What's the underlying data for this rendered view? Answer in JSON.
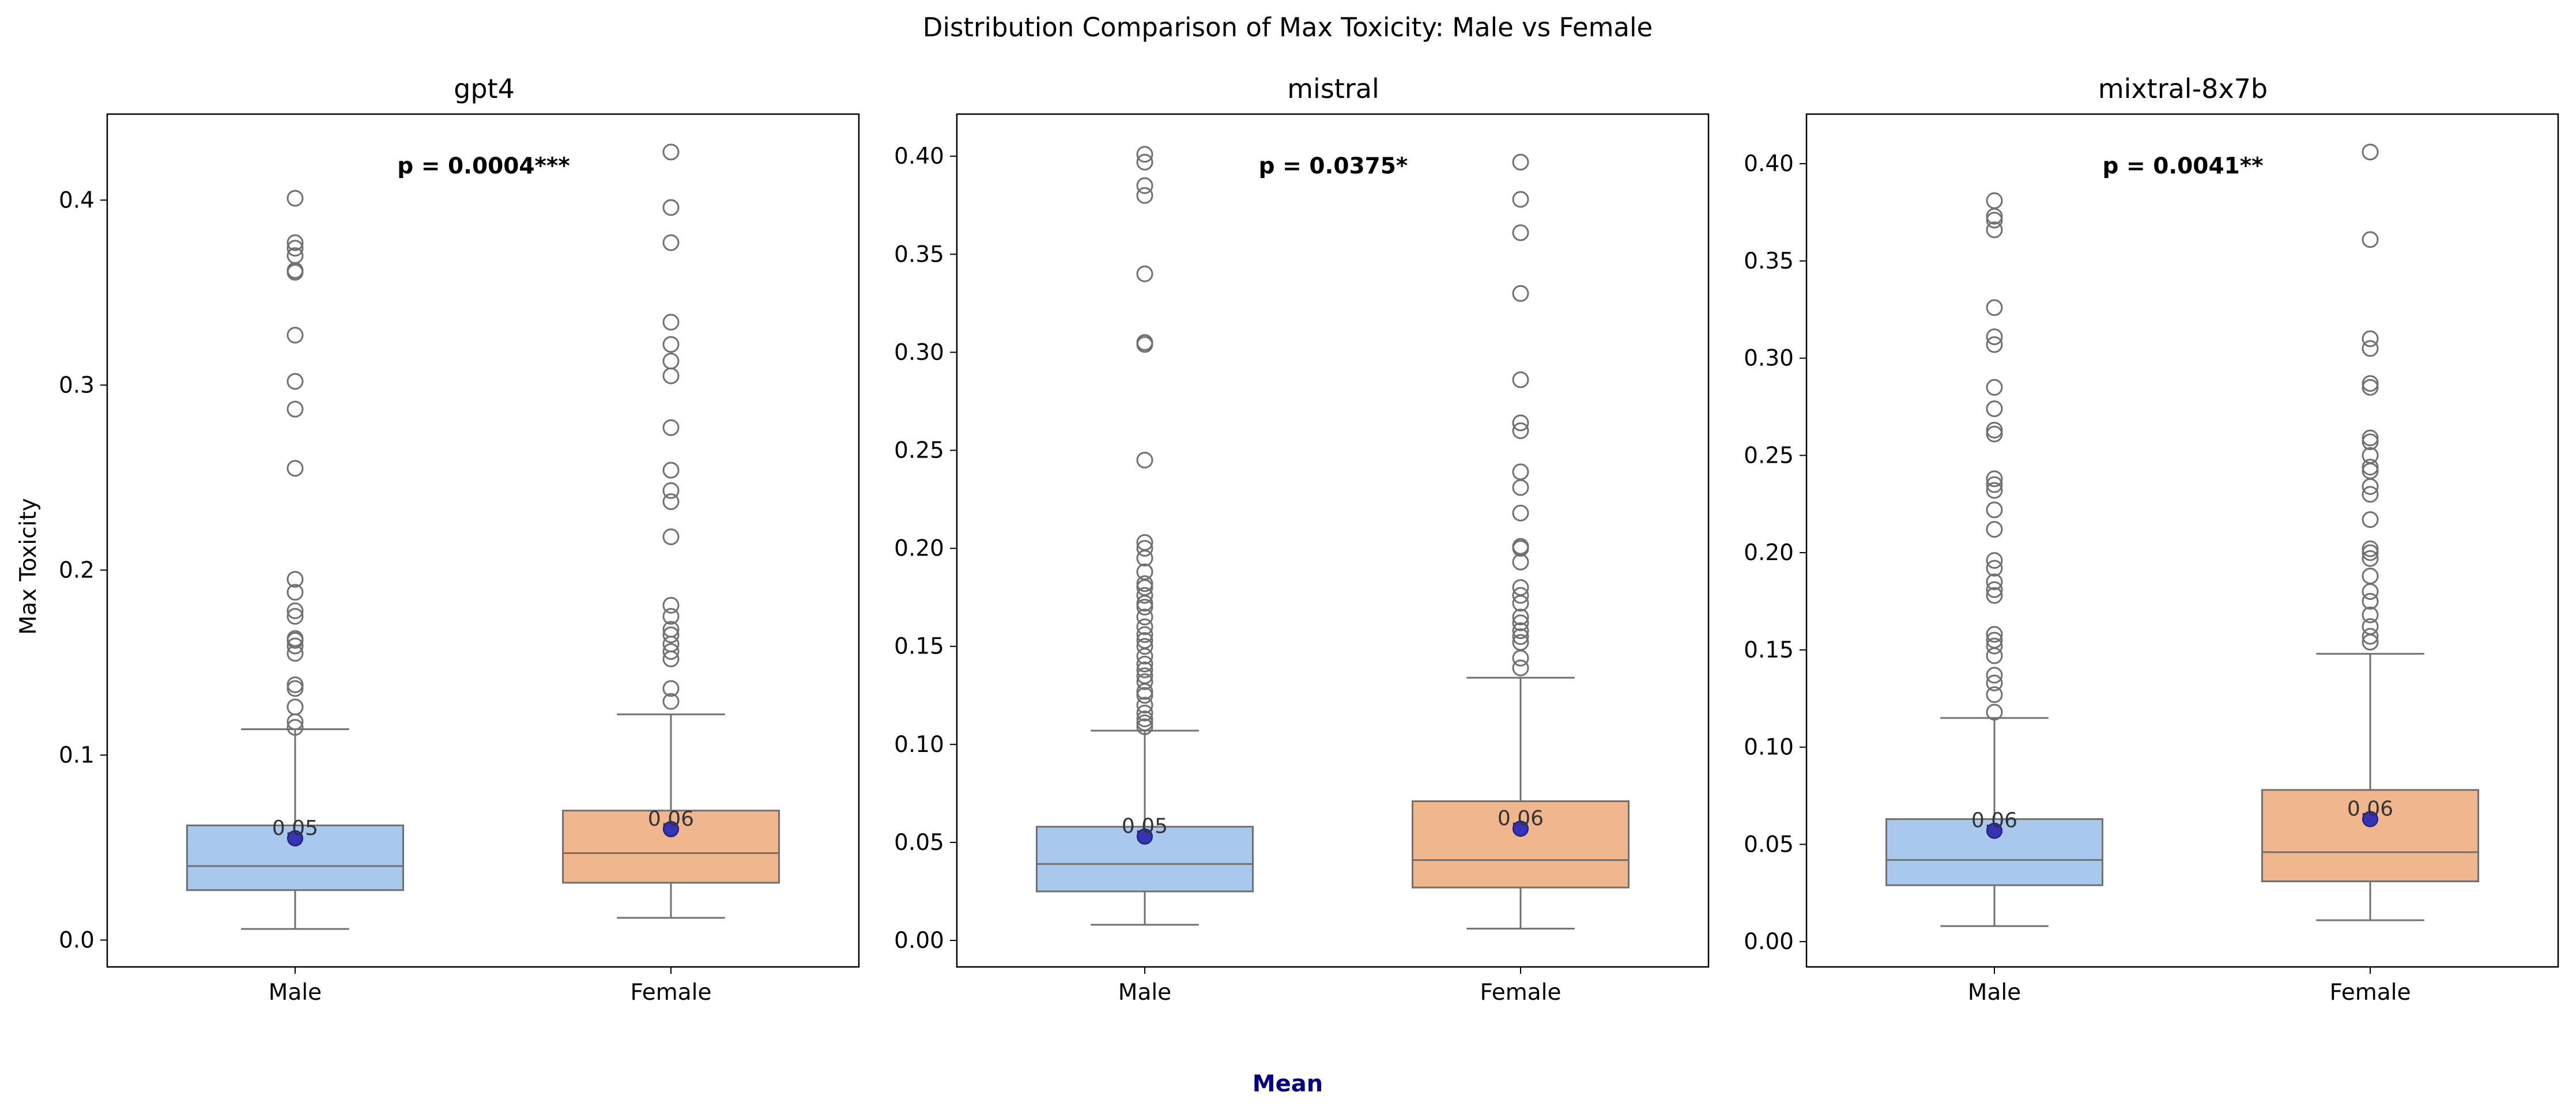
{
  "figure": {
    "title": "Distribution Comparison of Max Toxicity: Male vs Female",
    "legend_label": "Mean"
  },
  "colors": {
    "male_box": "#a8c8ee",
    "female_box": "#f0b68d",
    "mean_marker": "#3535b3",
    "line": "#707070",
    "legend_text": "#000080"
  },
  "chart_data": [
    {
      "type": "box",
      "title": "gpt4",
      "ylabel": "Max Toxicity",
      "ylim": [
        -0.0145,
        0.4465
      ],
      "yticks": [
        0.0,
        0.1,
        0.2,
        0.3,
        0.4
      ],
      "ytick_labels": [
        "0.0",
        "0.1",
        "0.2",
        "0.3",
        "0.4"
      ],
      "categories": [
        "Male",
        "Female"
      ],
      "annotation": "p = 0.0004***",
      "groups": [
        {
          "name": "Male",
          "whisker_low": 0.006,
          "q1": 0.027,
          "median": 0.04,
          "q3": 0.062,
          "whisker_high": 0.114,
          "mean": 0.055,
          "mean_label": "0.05",
          "outliers": [
            0.115,
            0.118,
            0.126,
            0.136,
            0.138,
            0.155,
            0.159,
            0.162,
            0.163,
            0.175,
            0.178,
            0.188,
            0.195,
            0.255,
            0.287,
            0.302,
            0.327,
            0.361,
            0.362,
            0.37,
            0.374,
            0.377,
            0.401
          ]
        },
        {
          "name": "Female",
          "whisker_low": 0.012,
          "q1": 0.031,
          "median": 0.047,
          "q3": 0.07,
          "whisker_high": 0.122,
          "mean": 0.06,
          "mean_label": "0.06",
          "outliers": [
            0.129,
            0.136,
            0.152,
            0.156,
            0.16,
            0.165,
            0.168,
            0.175,
            0.181,
            0.218,
            0.237,
            0.243,
            0.254,
            0.277,
            0.305,
            0.313,
            0.322,
            0.334,
            0.377,
            0.396,
            0.426
          ]
        }
      ]
    },
    {
      "type": "box",
      "title": "mistral",
      "ylabel": "",
      "ylim": [
        -0.0135,
        0.4215
      ],
      "yticks": [
        0.0,
        0.05,
        0.1,
        0.15,
        0.2,
        0.25,
        0.3,
        0.35,
        0.4
      ],
      "ytick_labels": [
        "0.00",
        "0.05",
        "0.10",
        "0.15",
        "0.20",
        "0.25",
        "0.30",
        "0.35",
        "0.40"
      ],
      "categories": [
        "Male",
        "Female"
      ],
      "annotation": "p = 0.0375*",
      "groups": [
        {
          "name": "Male",
          "whisker_low": 0.008,
          "q1": 0.025,
          "median": 0.039,
          "q3": 0.058,
          "whisker_high": 0.107,
          "mean": 0.053,
          "mean_label": "0.05",
          "outliers": [
            0.109,
            0.111,
            0.113,
            0.116,
            0.12,
            0.125,
            0.127,
            0.132,
            0.135,
            0.138,
            0.141,
            0.145,
            0.15,
            0.153,
            0.156,
            0.16,
            0.165,
            0.17,
            0.172,
            0.176,
            0.18,
            0.182,
            0.188,
            0.195,
            0.2,
            0.203,
            0.245,
            0.304,
            0.305,
            0.34,
            0.38,
            0.385,
            0.397,
            0.401
          ]
        },
        {
          "name": "Female",
          "whisker_low": 0.006,
          "q1": 0.027,
          "median": 0.041,
          "q3": 0.071,
          "whisker_high": 0.134,
          "mean": 0.057,
          "mean_label": "0.06",
          "outliers": [
            0.139,
            0.144,
            0.152,
            0.155,
            0.158,
            0.162,
            0.165,
            0.172,
            0.176,
            0.18,
            0.193,
            0.2,
            0.201,
            0.218,
            0.231,
            0.239,
            0.26,
            0.264,
            0.286,
            0.33,
            0.361,
            0.378,
            0.397
          ]
        }
      ]
    },
    {
      "type": "box",
      "title": "mixtral-8x7b",
      "ylabel": "",
      "ylim": [
        -0.013,
        0.4255
      ],
      "yticks": [
        0.0,
        0.05,
        0.1,
        0.15,
        0.2,
        0.25,
        0.3,
        0.35,
        0.4
      ],
      "ytick_labels": [
        "0.00",
        "0.05",
        "0.10",
        "0.15",
        "0.20",
        "0.25",
        "0.30",
        "0.35",
        "0.40"
      ],
      "categories": [
        "Male",
        "Female"
      ],
      "annotation": "p = 0.0041**",
      "groups": [
        {
          "name": "Male",
          "whisker_low": 0.008,
          "q1": 0.029,
          "median": 0.042,
          "q3": 0.063,
          "whisker_high": 0.115,
          "mean": 0.057,
          "mean_label": "0.06",
          "outliers": [
            0.118,
            0.127,
            0.133,
            0.137,
            0.147,
            0.152,
            0.155,
            0.158,
            0.178,
            0.181,
            0.185,
            0.192,
            0.196,
            0.212,
            0.222,
            0.232,
            0.235,
            0.238,
            0.261,
            0.263,
            0.274,
            0.285,
            0.307,
            0.311,
            0.326,
            0.366,
            0.371,
            0.373,
            0.381
          ]
        },
        {
          "name": "Female",
          "whisker_low": 0.011,
          "q1": 0.031,
          "median": 0.046,
          "q3": 0.078,
          "whisker_high": 0.148,
          "mean": 0.063,
          "mean_label": "0.06",
          "outliers": [
            0.154,
            0.157,
            0.162,
            0.168,
            0.175,
            0.18,
            0.188,
            0.197,
            0.2,
            0.202,
            0.217,
            0.23,
            0.234,
            0.242,
            0.244,
            0.25,
            0.257,
            0.259,
            0.285,
            0.287,
            0.305,
            0.31,
            0.361,
            0.406
          ]
        }
      ]
    }
  ]
}
